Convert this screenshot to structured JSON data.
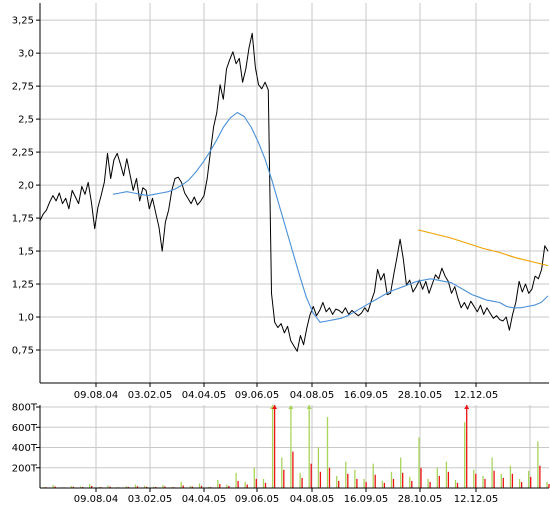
{
  "chart_data": [
    {
      "type": "line",
      "title": "",
      "xlabel": "",
      "ylabel": "",
      "x_ticks": [
        "09.08.04",
        "03.02.05",
        "04.04.05",
        "09.06.05",
        "04.08.05",
        "16.09.05",
        "28.10.05",
        "12.12.05"
      ],
      "y_ticks": [
        "0,75",
        "1,0",
        "1,25",
        "1,5",
        "1,75",
        "2,0",
        "2,25",
        "2,5",
        "2,75",
        "3,0",
        "3,25"
      ],
      "ylim": [
        0.5,
        3.38
      ],
      "grid": true,
      "legend": "none",
      "series": [
        {
          "color": "#000000",
          "values": [
            1.73,
            1.78,
            1.81,
            1.87,
            1.92,
            1.88,
            1.94,
            1.86,
            1.9,
            1.82,
            1.96,
            1.91,
            1.86,
            1.99,
            1.93,
            2.02,
            1.87,
            1.67,
            1.83,
            1.92,
            2.02,
            2.24,
            2.05,
            2.19,
            2.24,
            2.16,
            2.07,
            2.2,
            2.08,
            1.96,
            2.05,
            1.88,
            1.98,
            1.96,
            1.82,
            1.9,
            1.79,
            1.68,
            1.5,
            1.72,
            1.81,
            1.96,
            2.05,
            2.06,
            2.02,
            1.94,
            1.9,
            1.86,
            1.91,
            1.85,
            1.88,
            1.92,
            2.05,
            2.25,
            2.44,
            2.55,
            2.76,
            2.65,
            2.88,
            2.95,
            3.01,
            2.92,
            2.96,
            2.78,
            2.88,
            3.04,
            3.15,
            2.89,
            2.76,
            2.73,
            2.78,
            2.72,
            1.18,
            0.96,
            0.92,
            0.95,
            0.88,
            0.93,
            0.82,
            0.78,
            0.74,
            0.86,
            0.79,
            0.92,
            1.02,
            1.08,
            1.01,
            1.05,
            1.11,
            1.04,
            1.07,
            1.02,
            1.06,
            1.05,
            1.03,
            1.07,
            1.02,
            1.05,
            1.03,
            1.01,
            1.03,
            1.07,
            1.04,
            1.12,
            1.19,
            1.36,
            1.28,
            1.33,
            1.17,
            1.18,
            1.32,
            1.45,
            1.59,
            1.44,
            1.24,
            1.28,
            1.19,
            1.23,
            1.28,
            1.21,
            1.27,
            1.18,
            1.25,
            1.32,
            1.29,
            1.37,
            1.31,
            1.27,
            1.18,
            1.23,
            1.14,
            1.07,
            1.11,
            1.06,
            1.12,
            1.08,
            1.04,
            1.09,
            1.02,
            1.07,
            1.03,
            0.99,
            1.01,
            0.98,
            0.97,
            1.0,
            0.9,
            1.02,
            1.11,
            1.27,
            1.19,
            1.25,
            1.18,
            1.21,
            1.31,
            1.29,
            1.36,
            1.54,
            1.5
          ]
        },
        {
          "color": "#4a90d9",
          "values": [
            1.93,
            1.94,
            1.95,
            1.94,
            1.93,
            1.92,
            1.93,
            1.94,
            1.95,
            1.97,
            2.0,
            2.04,
            2.1,
            2.17,
            2.25,
            2.34,
            2.44,
            2.51,
            2.55,
            2.52,
            2.44,
            2.33,
            2.2,
            2.04,
            1.86,
            1.68,
            1.5,
            1.32,
            1.15,
            1.03,
            0.96,
            0.97,
            0.98,
            0.99,
            1.01,
            1.04,
            1.07,
            1.1,
            1.13,
            1.16,
            1.19,
            1.21,
            1.23,
            1.25,
            1.27,
            1.28,
            1.29,
            1.28,
            1.27,
            1.26,
            1.23,
            1.2,
            1.17,
            1.15,
            1.13,
            1.12,
            1.11,
            1.08,
            1.07,
            1.07,
            1.08,
            1.09,
            1.11,
            1.16
          ]
        },
        {
          "color": "#f0a000",
          "values": [
            1.66,
            1.63,
            1.6,
            1.56,
            1.52,
            1.49,
            1.45,
            1.42,
            1.39
          ]
        }
      ]
    },
    {
      "type": "bar",
      "title": "",
      "xlabel": "",
      "ylabel": "",
      "x_ticks": [
        "09.08.04",
        "03.02.05",
        "04.04.05",
        "09.06.05",
        "04.08.05",
        "16.09.05",
        "28.10.05",
        "12.12.05"
      ],
      "y_ticks": [
        "200T",
        "400T",
        "600T",
        "800T"
      ],
      "ylim": [
        0,
        820
      ],
      "grid": true,
      "legend": "none",
      "series": [
        {
          "color": "#a8d45a",
          "values": [
            10,
            30,
            8,
            20,
            15,
            40,
            12,
            25,
            9,
            18,
            35,
            22,
            14,
            30,
            10,
            60,
            20,
            45,
            12,
            80,
            35,
            150,
            60,
            200,
            90,
            820,
            300,
            800,
            150,
            850,
            400,
            700,
            120,
            260,
            180,
            90,
            240,
            70,
            160,
            300,
            110,
            500,
            90,
            200,
            260,
            80,
            650,
            180,
            120,
            300,
            140,
            220,
            90,
            170,
            460,
            60
          ]
        },
        {
          "color": "#ee1111",
          "values": [
            8,
            15,
            6,
            12,
            10,
            20,
            9,
            14,
            6,
            11,
            18,
            12,
            10,
            16,
            8,
            25,
            14,
            22,
            9,
            40,
            20,
            70,
            35,
            90,
            50,
            820,
            180,
            360,
            100,
            240,
            160,
            200,
            70,
            140,
            90,
            60,
            130,
            50,
            90,
            150,
            70,
            200,
            60,
            120,
            160,
            50,
            820,
            140,
            90,
            170,
            100,
            140,
            60,
            110,
            220,
            40
          ]
        }
      ]
    }
  ]
}
